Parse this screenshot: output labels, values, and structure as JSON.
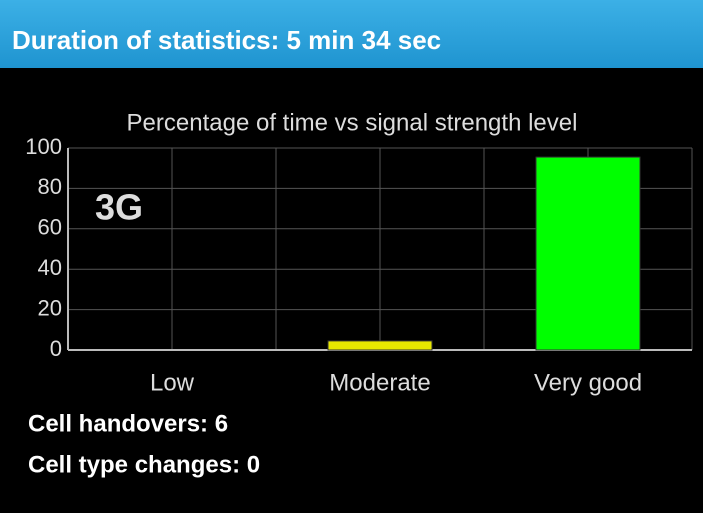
{
  "header": {
    "title": "Duration of statistics: 5 min 34 sec"
  },
  "chart_data": {
    "type": "bar",
    "title": "Percentage of time vs signal strength level",
    "annotation": "3G",
    "categories": [
      "Low",
      "Moderate",
      "Very good"
    ],
    "values": [
      0,
      4.5,
      95.5
    ],
    "colors": [
      "#00ff00",
      "#e8e800",
      "#00ff00"
    ],
    "ylim": [
      0,
      100
    ],
    "yticks": [
      0,
      20,
      40,
      60,
      80,
      100
    ],
    "grid": true
  },
  "footer": {
    "handovers": "Cell handovers: 6",
    "type_changes": "Cell type changes: 0"
  }
}
